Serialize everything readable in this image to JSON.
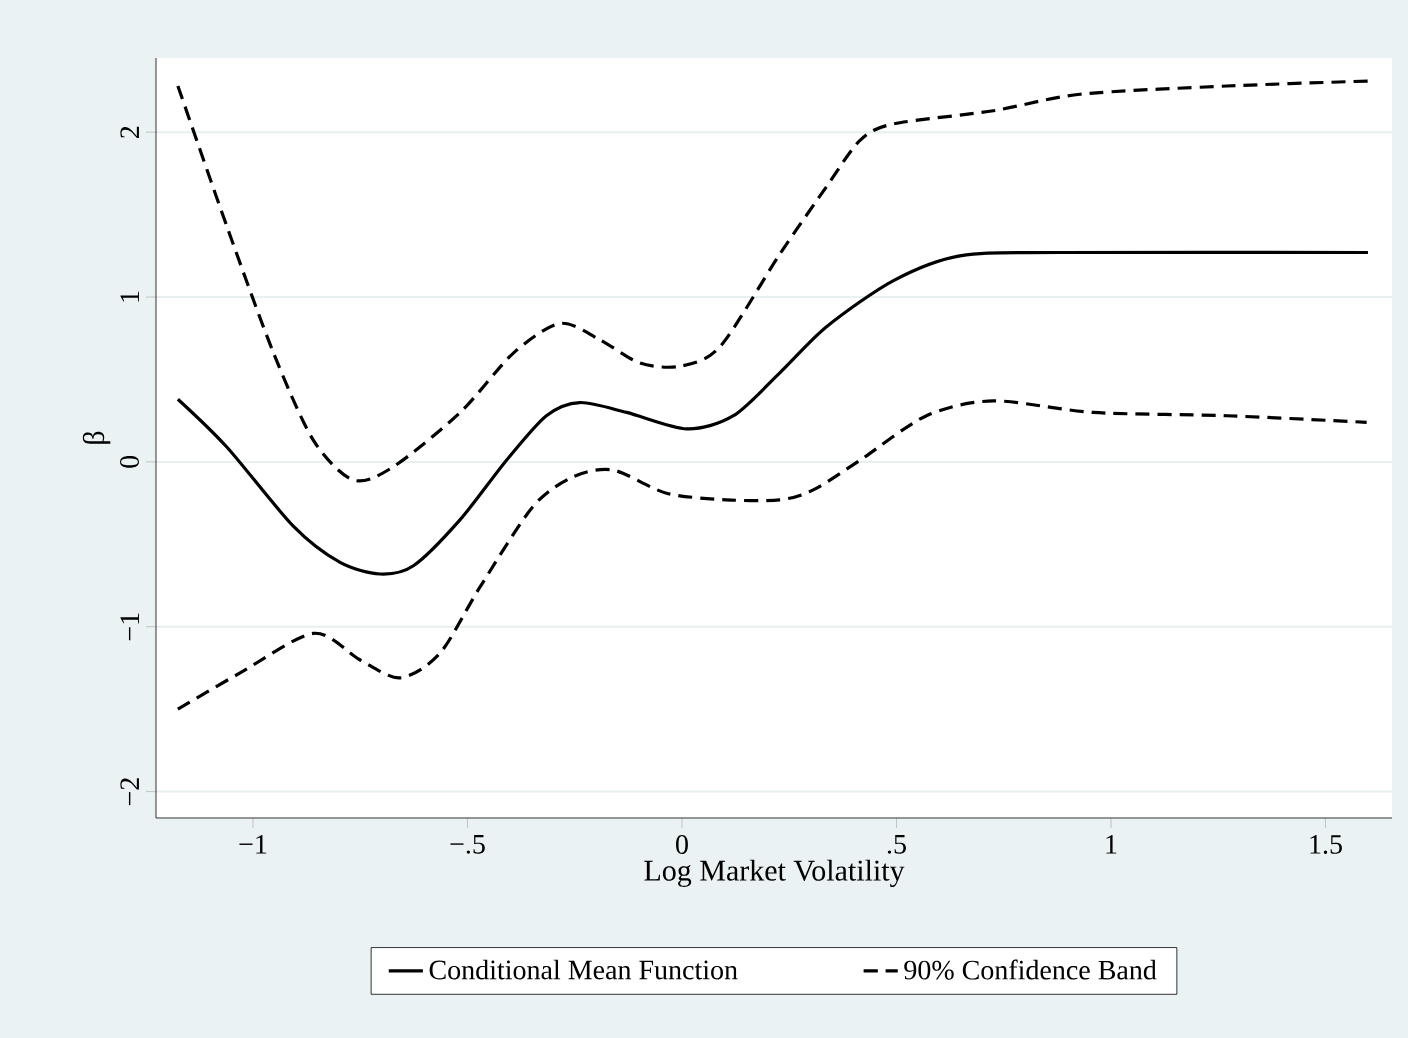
{
  "chart_data": {
    "type": "line",
    "xlabel": "Log Market Volatility",
    "ylabel": "β",
    "xlim": [
      -1.226,
      1.655
    ],
    "ylim": [
      -2.16,
      2.45
    ],
    "xticks": [
      {
        "value": -1,
        "label": "−1"
      },
      {
        "value": -0.5,
        "label": "−.5"
      },
      0,
      {
        "value": 0.5,
        "label": ".5"
      },
      1,
      1.5
    ],
    "yticks": [
      {
        "value": -2,
        "label": "−2"
      },
      {
        "value": -1,
        "label": "−1"
      },
      0,
      1,
      2
    ],
    "grid": "y",
    "legend": "bottom",
    "marker": "none",
    "series": [
      {
        "name": "Conditional Mean Function",
        "color": "#000000",
        "line_style": "solid",
        "x": [
          -1.175,
          -1.061,
          -0.906,
          -0.797,
          -0.704,
          -0.626,
          -0.517,
          -0.409,
          -0.316,
          -0.238,
          -0.129,
          0.011,
          0.12,
          0.228,
          0.337,
          0.493,
          0.648,
          0.881,
          1.599
        ],
        "values": [
          0.38,
          0.09,
          -0.39,
          -0.61,
          -0.68,
          -0.63,
          -0.35,
          0.01,
          0.28,
          0.36,
          0.3,
          0.2,
          0.28,
          0.54,
          0.82,
          1.1,
          1.25,
          1.27,
          1.27
        ]
      },
      {
        "name": "90% Confidence Band",
        "color": "#000000",
        "line_style": "dashed",
        "x": [
          -1.175,
          -1.061,
          -0.952,
          -0.859,
          -0.766,
          -0.673,
          -0.517,
          -0.393,
          -0.284,
          -0.191,
          -0.098,
          -0.005,
          0.089,
          0.228,
          0.337,
          0.415,
          0.493,
          0.726,
          0.928,
          1.27,
          1.599
        ],
        "values": [
          2.28,
          1.43,
          0.66,
          0.13,
          -0.11,
          -0.03,
          0.3,
          0.66,
          0.84,
          0.74,
          0.6,
          0.58,
          0.7,
          1.26,
          1.67,
          1.95,
          2.05,
          2.13,
          2.23,
          2.28,
          2.31
        ]
      },
      {
        "color": "#000000",
        "line_style": "dashed",
        "x": [
          -1.175,
          -1.03,
          -0.859,
          -0.751,
          -0.657,
          -0.564,
          -0.471,
          -0.347,
          -0.253,
          -0.16,
          -0.036,
          0.104,
          0.228,
          0.306,
          0.415,
          0.57,
          0.726,
          0.959,
          1.27,
          1.596
        ],
        "values": [
          -1.5,
          -1.28,
          -1.04,
          -1.2,
          -1.31,
          -1.16,
          -0.76,
          -0.27,
          -0.09,
          -0.05,
          -0.19,
          -0.23,
          -0.23,
          -0.17,
          0.01,
          0.28,
          0.37,
          0.3,
          0.28,
          0.24
        ]
      }
    ]
  }
}
